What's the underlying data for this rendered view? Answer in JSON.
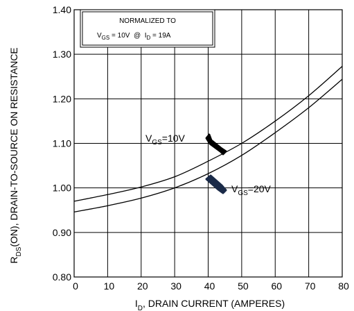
{
  "chart_data": {
    "type": "line",
    "xlabel": {
      "main": "I",
      "sub": "D",
      "rest": ", DRAIN CURRENT (AMPERES)"
    },
    "ylabel": {
      "main": "R",
      "sub": "DS",
      "rest": "(ON), DRAIN-TO-SOURCE ON RESISTANCE"
    },
    "xlim": [
      0,
      80
    ],
    "ylim": [
      0.8,
      1.4
    ],
    "x_ticks": [
      0,
      10,
      20,
      30,
      40,
      50,
      60,
      70,
      80
    ],
    "y_ticks": [
      0.8,
      0.9,
      1.0,
      1.1,
      1.2,
      1.3,
      1.4
    ],
    "y_tick_labels": [
      "0.80",
      "0.90",
      "1.00",
      "1.10",
      "1.20",
      "1.30",
      "1.40"
    ],
    "grid": true,
    "annotation_box": {
      "line1": "NORMALIZED TO",
      "line2": {
        "v": "V",
        "vsub": "GS",
        "vval": " = 10V  @  ",
        "i": "I",
        "isub": "D",
        "ival": " = 19A"
      }
    },
    "series": [
      {
        "label": {
          "main": "V",
          "sub": "GS",
          "rest": "=10V"
        },
        "x": [
          0,
          10,
          20,
          30,
          40,
          50,
          60,
          70,
          80
        ],
        "y": [
          0.97,
          0.985,
          1.002,
          1.025,
          1.06,
          1.1,
          1.15,
          1.207,
          1.273
        ]
      },
      {
        "label": {
          "main": "V",
          "sub": "GS",
          "rest": "=20V"
        },
        "x": [
          0,
          10,
          20,
          30,
          40,
          50,
          60,
          70,
          80
        ],
        "y": [
          0.946,
          0.96,
          0.977,
          1.0,
          1.032,
          1.073,
          1.124,
          1.18,
          1.244
        ]
      }
    ]
  }
}
